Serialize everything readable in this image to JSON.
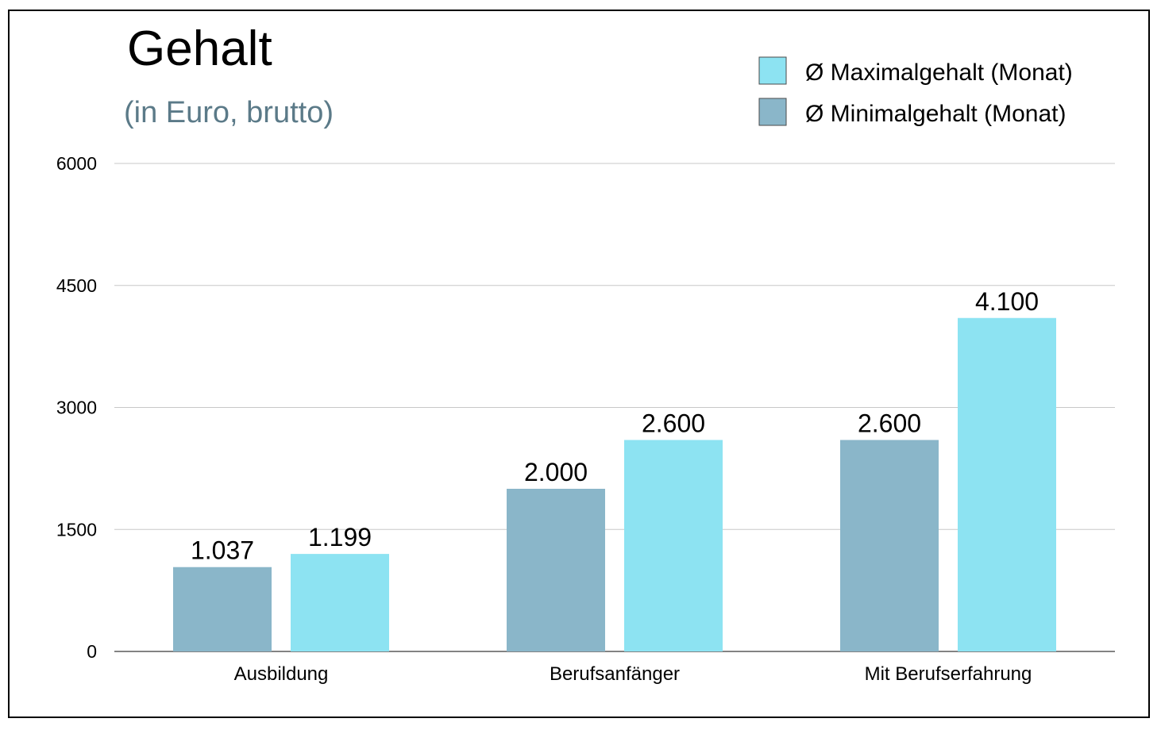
{
  "chart_data": {
    "type": "bar",
    "title": "Gehalt",
    "subtitle": "(in Euro, brutto)",
    "categories": [
      "Ausbildung",
      "Berufsanfänger",
      "Mit Berufserfahrung"
    ],
    "series": [
      {
        "name": "Ø Minimalgehalt (Monat)",
        "color": "#8ab6c9",
        "values": [
          1037,
          2000,
          2600
        ],
        "labels": [
          "1.037",
          "2.000",
          "2.600"
        ]
      },
      {
        "name": "Ø Maximalgehalt (Monat)",
        "color": "#8de3f2",
        "values": [
          1199,
          2600,
          4100
        ],
        "labels": [
          "1.199",
          "2.600",
          "4.100"
        ]
      }
    ],
    "legend_order": [
      1,
      0
    ],
    "legend_position": "top-right",
    "ylim": [
      0,
      6000
    ],
    "yticks": [
      0,
      1500,
      3000,
      4500,
      6000
    ],
    "ytick_labels": [
      "0",
      "1500",
      "3000",
      "4500",
      "6000"
    ],
    "grid": true,
    "xlabel": "",
    "ylabel": ""
  }
}
